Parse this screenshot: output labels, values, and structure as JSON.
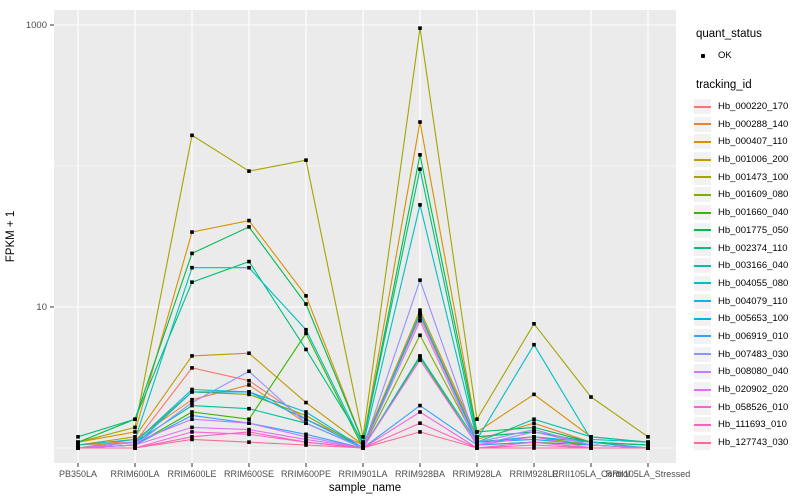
{
  "figure": {
    "panel_bg": "#EBEBEB",
    "grid_color": "#FFFFFF",
    "point_color": "#000000",
    "axis_text_color": "#4D4D4D",
    "title_text_color": "#000000",
    "legend_key_bg": "#F2F2F2"
  },
  "chart_data": {
    "type": "line",
    "xlabel": "sample_name",
    "ylabel": "FPKM + 1",
    "y_scale": "log10",
    "ylim_log": [
      -0.11,
      3.1
    ],
    "y_major_ticks": [
      10,
      1000
    ],
    "y_major_labels": [
      "10",
      "1000"
    ],
    "y_minor_ticks": [
      1,
      100
    ],
    "grid": true,
    "legend_position": "right",
    "categories": [
      "PB350LA",
      "RRIM600LA",
      "RRIM600LE",
      "RRIM600SE",
      "RRIM600PE",
      "RRIM901LA",
      "RRIM928BA",
      "RRIM928LA",
      "RRIM928LE",
      "RRII105LA_Control",
      "RRII105LA_Stressed"
    ],
    "series": [
      {
        "name": "Hb_000220_170",
        "color": "#F8766D",
        "values": [
          1.05,
          1.1,
          3.7,
          3.0,
          1.6,
          1.05,
          8.5,
          1.1,
          1.2,
          1.05,
          1.0
        ]
      },
      {
        "name": "Hb_000288_140",
        "color": "#EA8331",
        "values": [
          1.0,
          1.15,
          2.2,
          2.8,
          1.5,
          1.0,
          9.0,
          1.15,
          1.5,
          1.1,
          1.0
        ]
      },
      {
        "name": "Hb_000407_110",
        "color": "#D89000",
        "values": [
          1.1,
          1.3,
          34,
          41,
          12,
          1.1,
          205,
          1.3,
          2.4,
          1.2,
          1.1
        ]
      },
      {
        "name": "Hb_001006_200",
        "color": "#C09B00",
        "values": [
          1.05,
          1.2,
          4.5,
          4.7,
          2.1,
          1.05,
          9.5,
          1.2,
          1.3,
          1.1,
          1.05
        ]
      },
      {
        "name": "Hb_001473_100",
        "color": "#A3A500",
        "values": [
          1.1,
          1.4,
          165,
          92,
          110,
          1.2,
          950,
          1.6,
          7.6,
          2.3,
          1.2
        ]
      },
      {
        "name": "Hb_001609_080",
        "color": "#7CAE00",
        "values": [
          1.0,
          1.1,
          2.5,
          2.4,
          1.7,
          1.0,
          6.3,
          1.1,
          1.2,
          1.05,
          1.0
        ]
      },
      {
        "name": "Hb_001660_040",
        "color": "#39B600",
        "values": [
          1.0,
          1.05,
          1.8,
          1.6,
          6.5,
          1.0,
          4.4,
          1.05,
          1.1,
          1.05,
          1.0
        ]
      },
      {
        "name": "Hb_001775_050",
        "color": "#00BB4E",
        "values": [
          1.1,
          1.6,
          24,
          37,
          10.5,
          1.1,
          120,
          1.3,
          1.4,
          1.1,
          1.05
        ]
      },
      {
        "name": "Hb_002374_110",
        "color": "#00BF7D",
        "values": [
          1.2,
          1.6,
          15,
          21,
          5.0,
          1.1,
          95,
          1.2,
          1.3,
          1.1,
          1.05
        ]
      },
      {
        "name": "Hb_003166_040",
        "color": "#00C1A3",
        "values": [
          1.0,
          1.1,
          2.0,
          1.9,
          1.5,
          1.0,
          4.5,
          1.1,
          1.6,
          1.2,
          1.1
        ]
      },
      {
        "name": "Hb_004055_080",
        "color": "#00BFC4",
        "values": [
          1.05,
          1.15,
          19,
          19,
          6.9,
          1.05,
          53,
          1.15,
          5.4,
          1.15,
          1.1
        ]
      },
      {
        "name": "Hb_004079_110",
        "color": "#00BAE0",
        "values": [
          1.0,
          1.1,
          2.6,
          2.5,
          1.8,
          1.0,
          9.0,
          1.1,
          1.2,
          1.1,
          1.0
        ]
      },
      {
        "name": "Hb_005653_100",
        "color": "#00B0F6",
        "values": [
          1.0,
          1.05,
          2.5,
          2.5,
          1.6,
          1.0,
          9.0,
          1.1,
          1.15,
          1.05,
          1.0
        ]
      },
      {
        "name": "Hb_006919_010",
        "color": "#35A2FF",
        "values": [
          1.0,
          1.05,
          1.7,
          1.5,
          1.25,
          1.0,
          2.0,
          1.05,
          1.1,
          1.0,
          1.0
        ]
      },
      {
        "name": "Hb_007483_030",
        "color": "#9590FF",
        "values": [
          1.0,
          1.05,
          2.1,
          3.5,
          1.5,
          1.0,
          15.5,
          1.1,
          1.35,
          1.05,
          1.0
        ]
      },
      {
        "name": "Hb_008080_040",
        "color": "#C77CFF",
        "values": [
          1.0,
          1.1,
          1.6,
          1.5,
          1.2,
          1.0,
          8.0,
          1.05,
          1.3,
          1.05,
          1.0
        ]
      },
      {
        "name": "Hb_020902_020",
        "color": "#E76BF3",
        "values": [
          1.0,
          1.05,
          1.4,
          1.35,
          1.15,
          1.0,
          4.2,
          1.05,
          1.2,
          1.0,
          1.0
        ]
      },
      {
        "name": "Hb_058526_010",
        "color": "#FA62DB",
        "values": [
          1.0,
          1.0,
          1.3,
          1.25,
          1.1,
          1.0,
          1.8,
          1.0,
          1.1,
          1.0,
          1.0
        ]
      },
      {
        "name": "Hb_111693_010",
        "color": "#FF62BC",
        "values": [
          1.0,
          1.0,
          1.2,
          1.3,
          1.1,
          1.0,
          1.5,
          1.0,
          1.05,
          1.0,
          1.0
        ]
      },
      {
        "name": "Hb_127743_030",
        "color": "#FF6A98",
        "values": [
          1.0,
          1.0,
          1.15,
          1.1,
          1.05,
          1.0,
          1.3,
          1.0,
          1.0,
          1.0,
          1.0
        ]
      }
    ]
  },
  "legend": {
    "quant_title": "quant_status",
    "quant_items": [
      {
        "label": "OK",
        "marker": "point"
      }
    ],
    "tracking_title": "tracking_id"
  }
}
